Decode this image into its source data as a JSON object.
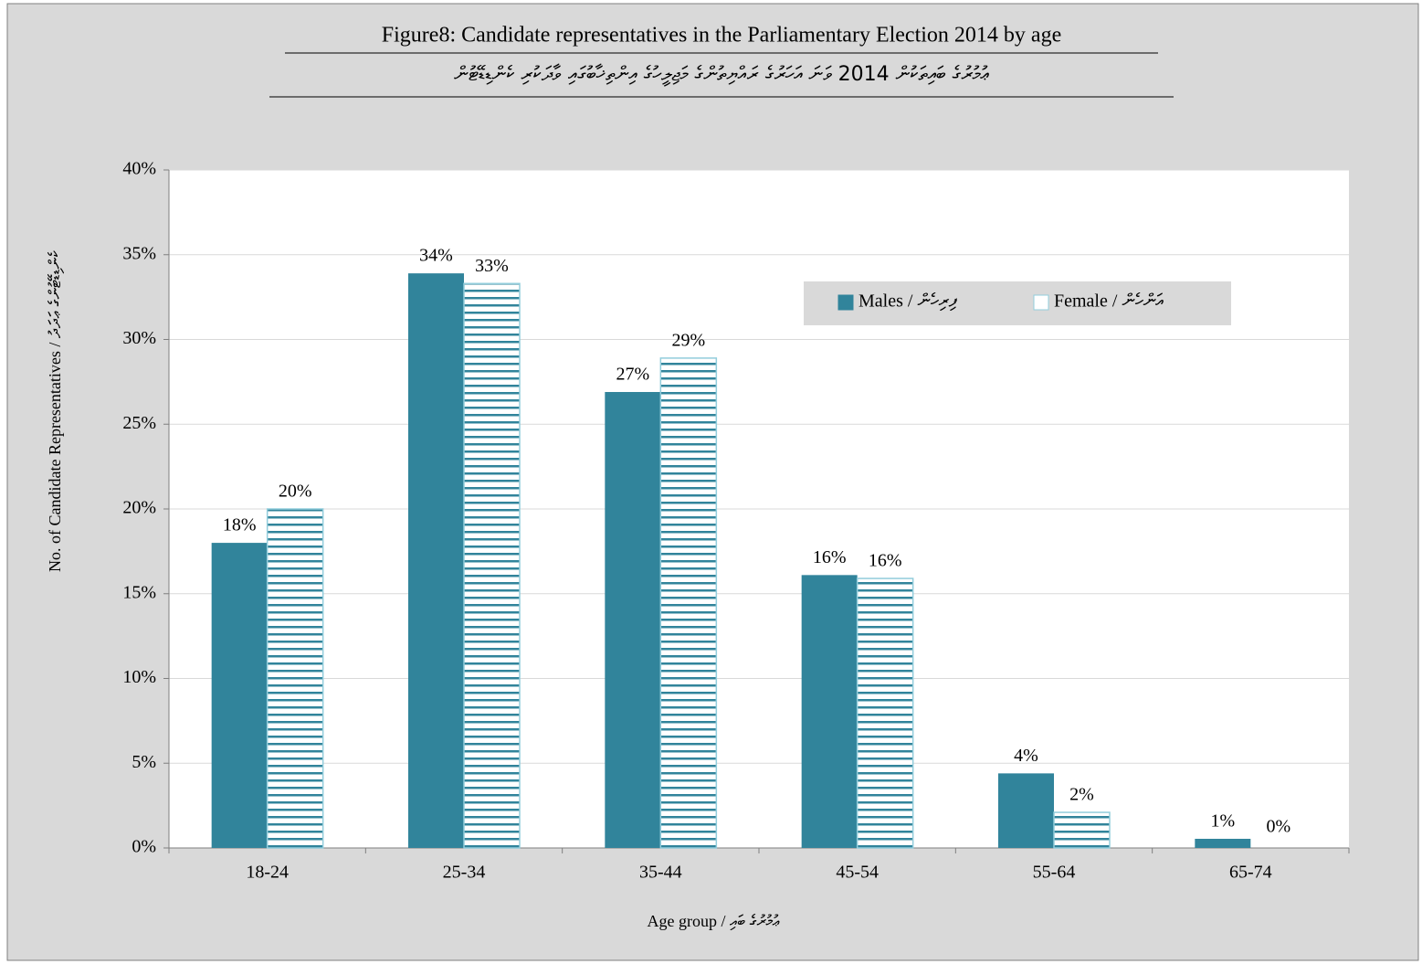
{
  "chart_data": {
    "type": "bar",
    "title": "Figure8: Candidate representatives in the Parliamentary Election 2014 by age",
    "subtitle": "ޢުމުރުގެ ބައިތަކުން 2014 ވަނަ އަހަރުގެ ރައްޔިތުންގެ މަޖިލީހުގެ އިންތިޚާބުގައި ވާދަކުރި ކެންޑިޑޭޓުން",
    "x_label": "Age group / ޢުމުރުގެ ބައި",
    "y_label": "No. of Candidate Representatives / ކެންޑިޑޭޓުންގެ ޢަދަދު",
    "categories": [
      "18-24",
      "25-34",
      "35-44",
      "45-54",
      "55-64",
      "65-74"
    ],
    "series": [
      {
        "name": "Males / ފިރިހެން",
        "color": "#31849b",
        "values": [
          18,
          33.9,
          26.9,
          16.1,
          4.4,
          0.54
        ],
        "value_labels": [
          "18%",
          "34%",
          "27%",
          "16%",
          "4%",
          "1%"
        ]
      },
      {
        "name": "Female / އަންހެން",
        "color": "#92cddc",
        "values": [
          20,
          33.3,
          28.9,
          15.9,
          2.1,
          0
        ],
        "value_labels": [
          "20%",
          "33%",
          "29%",
          "16%",
          "2%",
          "0%"
        ]
      }
    ],
    "ylim": [
      0,
      40
    ],
    "yticks": [
      {
        "value": 0,
        "label": "0%"
      },
      {
        "value": 5,
        "label": "5%"
      },
      {
        "value": 10,
        "label": "10%"
      },
      {
        "value": 15,
        "label": "15%"
      },
      {
        "value": 20,
        "label": "20%"
      },
      {
        "value": 25,
        "label": "25%"
      },
      {
        "value": 30,
        "label": "30%"
      },
      {
        "value": 35,
        "label": "35%"
      },
      {
        "value": 40,
        "label": "40%"
      }
    ],
    "grid": true,
    "legend": "top-right"
  }
}
